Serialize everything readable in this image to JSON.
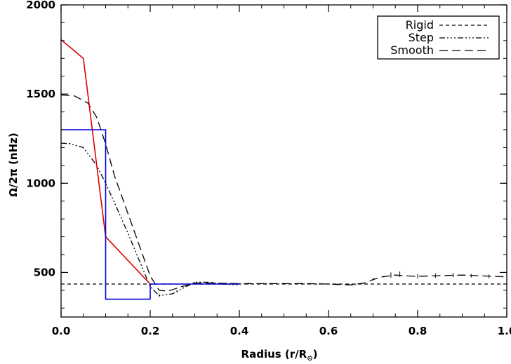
{
  "chart_data": {
    "type": "line",
    "xlabel_main": "Radius (r/R",
    "xlabel_sub": "⊙",
    "xlabel_close": ")",
    "ylabel": "Ω/2π (nHz)",
    "xlim": [
      0,
      1
    ],
    "ylim": [
      250,
      2000
    ],
    "xticks": [
      0.0,
      0.2,
      0.4,
      0.6,
      0.8,
      1.0
    ],
    "xtick_labels": [
      "0.0",
      "0.2",
      "0.4",
      "0.6",
      "0.8",
      "1.0"
    ],
    "yticks": [
      500,
      1000,
      1500,
      2000
    ],
    "ytick_labels": [
      "500",
      "1000",
      "1500",
      "2000"
    ],
    "grid": false,
    "legend_position": "top-right",
    "series": [
      {
        "name": "Rigid",
        "style": "dashed",
        "color": "#000000",
        "x": [
          0.0,
          1.0
        ],
        "y": [
          435,
          435
        ]
      },
      {
        "name": "Step",
        "style": "dash-dot-dot",
        "color": "#000000",
        "x": [
          0.0,
          0.02,
          0.05,
          0.08,
          0.1,
          0.12,
          0.15,
          0.18,
          0.2,
          0.22,
          0.25,
          0.28,
          0.3,
          0.33,
          0.36,
          0.4
        ],
        "y": [
          1225,
          1222,
          1200,
          1100,
          1000,
          890,
          720,
          540,
          420,
          370,
          380,
          420,
          445,
          445,
          435,
          430
        ]
      },
      {
        "name": "Smooth",
        "style": "long-dash",
        "color": "#000000",
        "x": [
          0.0,
          0.03,
          0.06,
          0.08,
          0.1,
          0.12,
          0.15,
          0.18,
          0.2,
          0.22,
          0.24,
          0.27,
          0.3,
          0.35,
          0.4,
          0.45,
          0.5,
          0.55,
          0.6,
          0.65,
          0.68,
          0.7,
          0.72,
          0.75,
          0.78,
          0.8,
          0.85,
          0.9,
          0.95,
          1.0
        ],
        "y": [
          1495,
          1490,
          1450,
          1370,
          1220,
          1040,
          830,
          620,
          480,
          400,
          395,
          420,
          440,
          440,
          437,
          437,
          437,
          437,
          435,
          430,
          440,
          460,
          475,
          485,
          480,
          478,
          482,
          485,
          480,
          475
        ]
      },
      {
        "name": "",
        "style": "solid",
        "color": "#e00000",
        "x": [
          0.0,
          0.05,
          0.1,
          0.2
        ],
        "y": [
          1805,
          1700,
          700,
          435
        ]
      },
      {
        "name": "",
        "style": "solid",
        "color": "#0000d8",
        "x": [
          0.0,
          0.1,
          0.1,
          0.2,
          0.2,
          0.4
        ],
        "y": [
          1300,
          1300,
          350,
          350,
          435,
          435
        ]
      }
    ],
    "error_bars": {
      "x": [
        0.02,
        0.22,
        0.26,
        0.3,
        0.34,
        0.38,
        0.42,
        0.46,
        0.5,
        0.54,
        0.58,
        0.62,
        0.66,
        0.7,
        0.74,
        0.76,
        0.8,
        0.84,
        0.88,
        0.92,
        0.96
      ],
      "y": [
        1222,
        370,
        395,
        440,
        442,
        437,
        437,
        437,
        437,
        437,
        436,
        433,
        432,
        462,
        485,
        490,
        478,
        482,
        485,
        482,
        478
      ],
      "half_width": [
        3,
        8,
        6,
        5,
        5,
        5,
        5,
        5,
        5,
        5,
        5,
        5,
        5,
        8,
        15,
        15,
        12,
        12,
        12,
        10,
        10
      ]
    }
  }
}
